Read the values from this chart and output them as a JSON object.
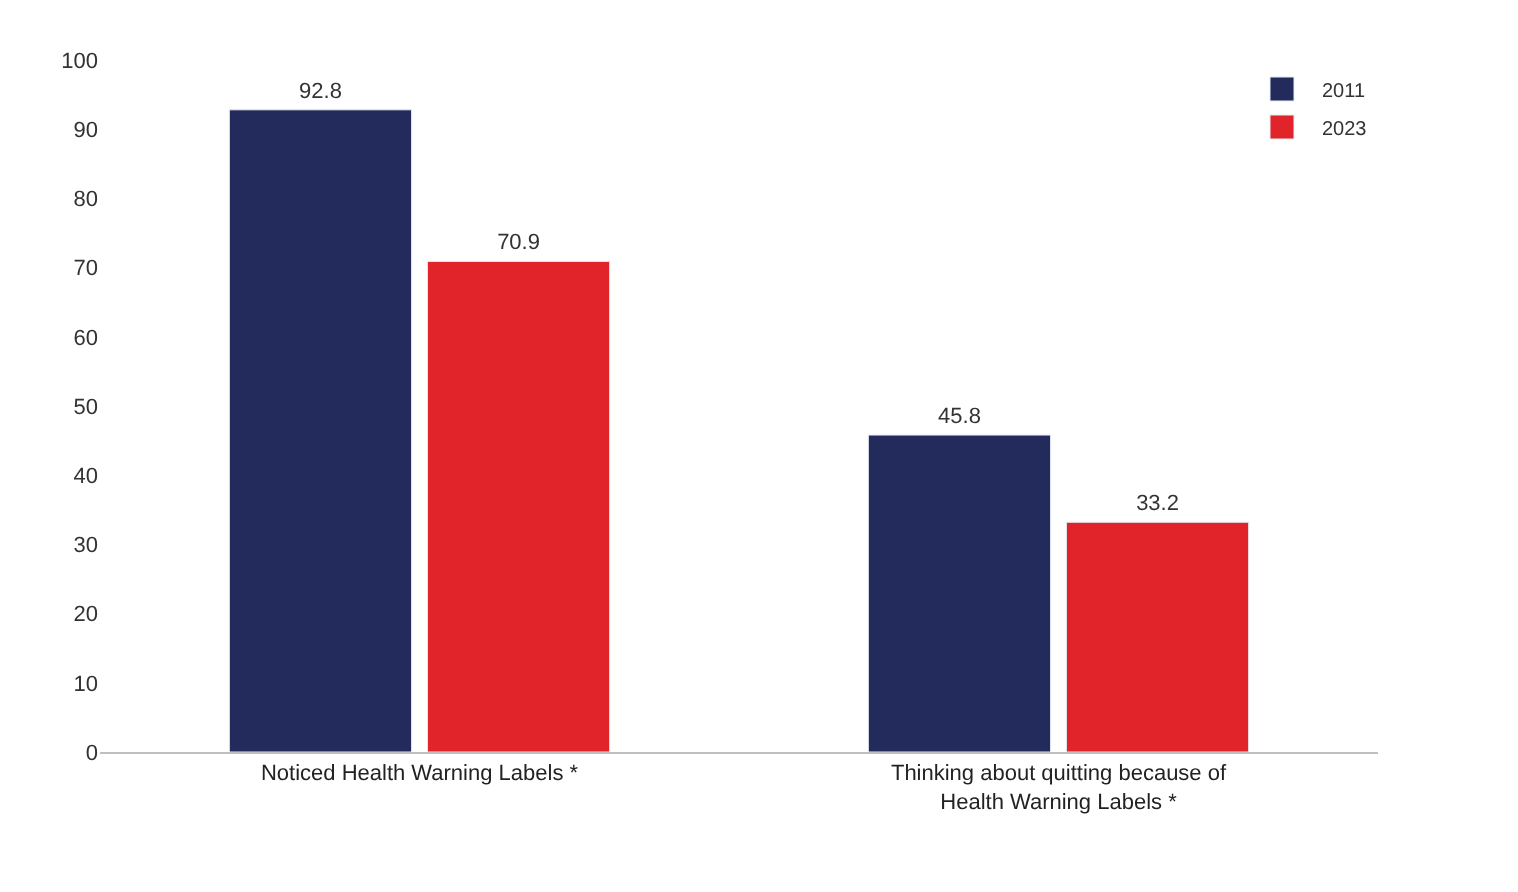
{
  "chart_data": {
    "type": "bar",
    "categories": [
      "Noticed Health Warning Labels *",
      "Thinking about quitting because of\nHealth Warning Labels *"
    ],
    "series": [
      {
        "name": "2011",
        "color": "#232a5c",
        "values": [
          92.8,
          45.8
        ]
      },
      {
        "name": "2023",
        "color": "#e0242a",
        "values": [
          70.9,
          33.2
        ]
      }
    ],
    "ylim": [
      0,
      100
    ],
    "yticks": [
      0,
      10,
      20,
      30,
      40,
      50,
      60,
      70,
      80,
      90,
      100
    ],
    "data_labels": true,
    "legend": "top right"
  }
}
